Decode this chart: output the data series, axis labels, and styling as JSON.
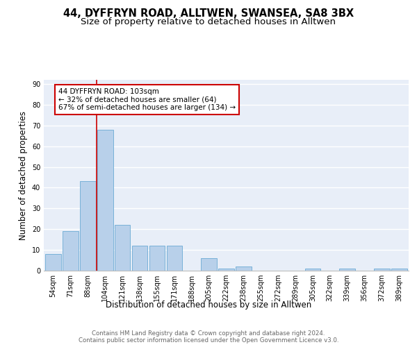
{
  "title1": "44, DYFFRYN ROAD, ALLTWEN, SWANSEA, SA8 3BX",
  "title2": "Size of property relative to detached houses in Alltwen",
  "xlabel": "Distribution of detached houses by size in Alltwen",
  "ylabel": "Number of detached properties",
  "bar_labels": [
    "54sqm",
    "71sqm",
    "88sqm",
    "104sqm",
    "121sqm",
    "138sqm",
    "155sqm",
    "171sqm",
    "188sqm",
    "205sqm",
    "222sqm",
    "238sqm",
    "255sqm",
    "272sqm",
    "289sqm",
    "305sqm",
    "322sqm",
    "339sqm",
    "356sqm",
    "372sqm",
    "389sqm"
  ],
  "bar_values": [
    8,
    19,
    43,
    68,
    22,
    12,
    12,
    12,
    0,
    6,
    1,
    2,
    0,
    0,
    0,
    1,
    0,
    1,
    0,
    1,
    1
  ],
  "bar_color": "#b8d0ea",
  "bar_edge_color": "#6aaad4",
  "background_color": "#e8eef8",
  "grid_color": "#ffffff",
  "vline_color": "#cc0000",
  "annotation_text": "44 DYFFRYN ROAD: 103sqm\n← 32% of detached houses are smaller (64)\n67% of semi-detached houses are larger (134) →",
  "annotation_box_color": "#cc0000",
  "ylim": [
    0,
    92
  ],
  "yticks": [
    0,
    10,
    20,
    30,
    40,
    50,
    60,
    70,
    80,
    90
  ],
  "footer_text": "Contains HM Land Registry data © Crown copyright and database right 2024.\nContains public sector information licensed under the Open Government Licence v3.0.",
  "title_fontsize": 10.5,
  "subtitle_fontsize": 9.5,
  "tick_fontsize": 7,
  "ylabel_fontsize": 8.5,
  "xlabel_fontsize": 8.5,
  "footer_fontsize": 6.2,
  "annotation_fontsize": 7.5
}
